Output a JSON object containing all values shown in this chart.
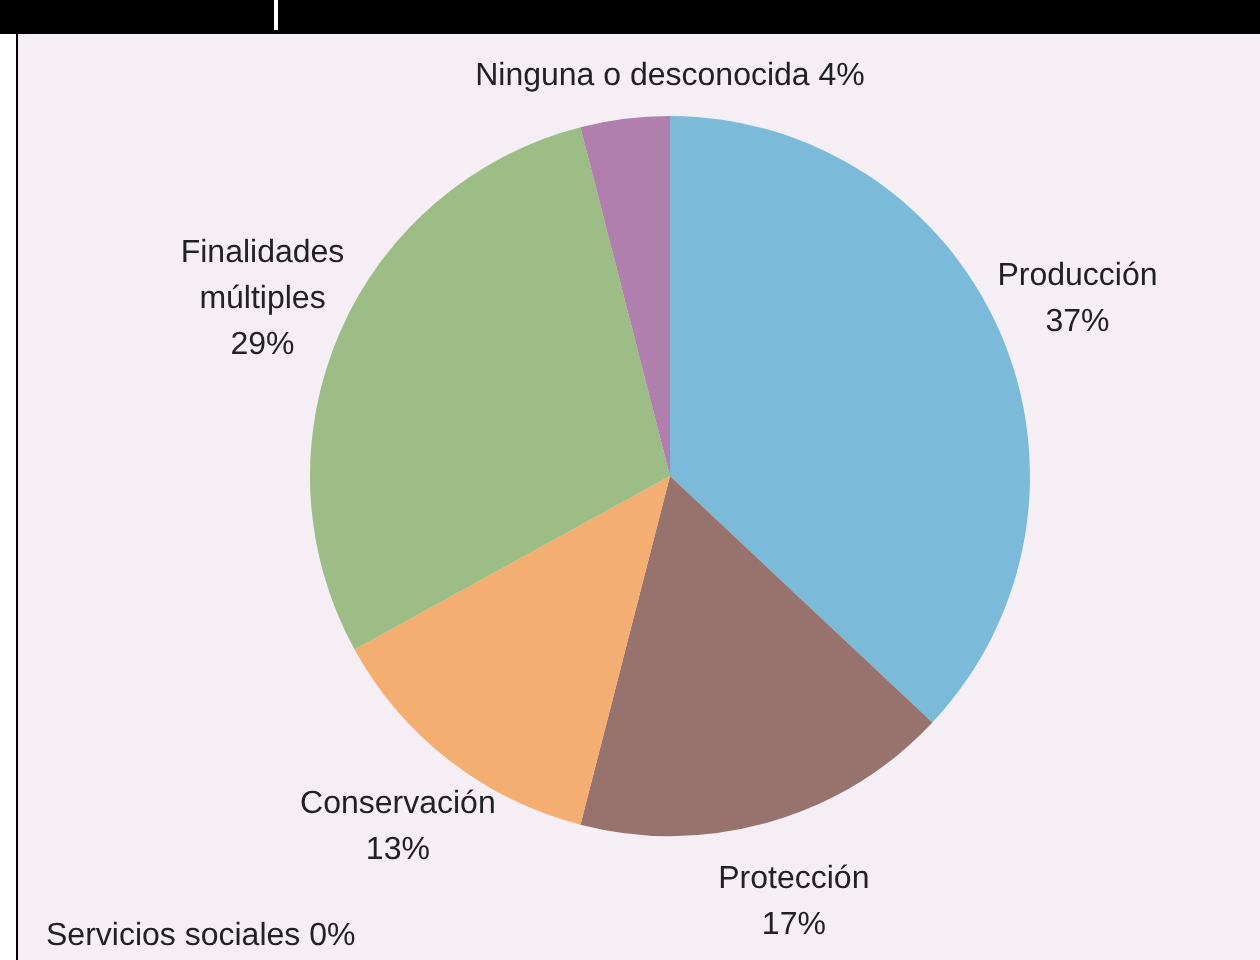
{
  "chart_data": {
    "type": "pie",
    "categories": [
      "Producción",
      "Protección",
      "Conservación",
      "Finalidades múltiples",
      "Servicios sociales",
      "Ninguna o desconocida"
    ],
    "values": [
      37,
      17,
      13,
      29,
      0,
      4
    ],
    "colors": [
      "#7bbad9",
      "#98736d",
      "#f4ae72",
      "#9dbd86",
      "#d9d9d9",
      "#b07fad"
    ],
    "value_labels": [
      "37%",
      "17%",
      "13%",
      "29%",
      "0%",
      "4%"
    ],
    "legend": false
  }
}
